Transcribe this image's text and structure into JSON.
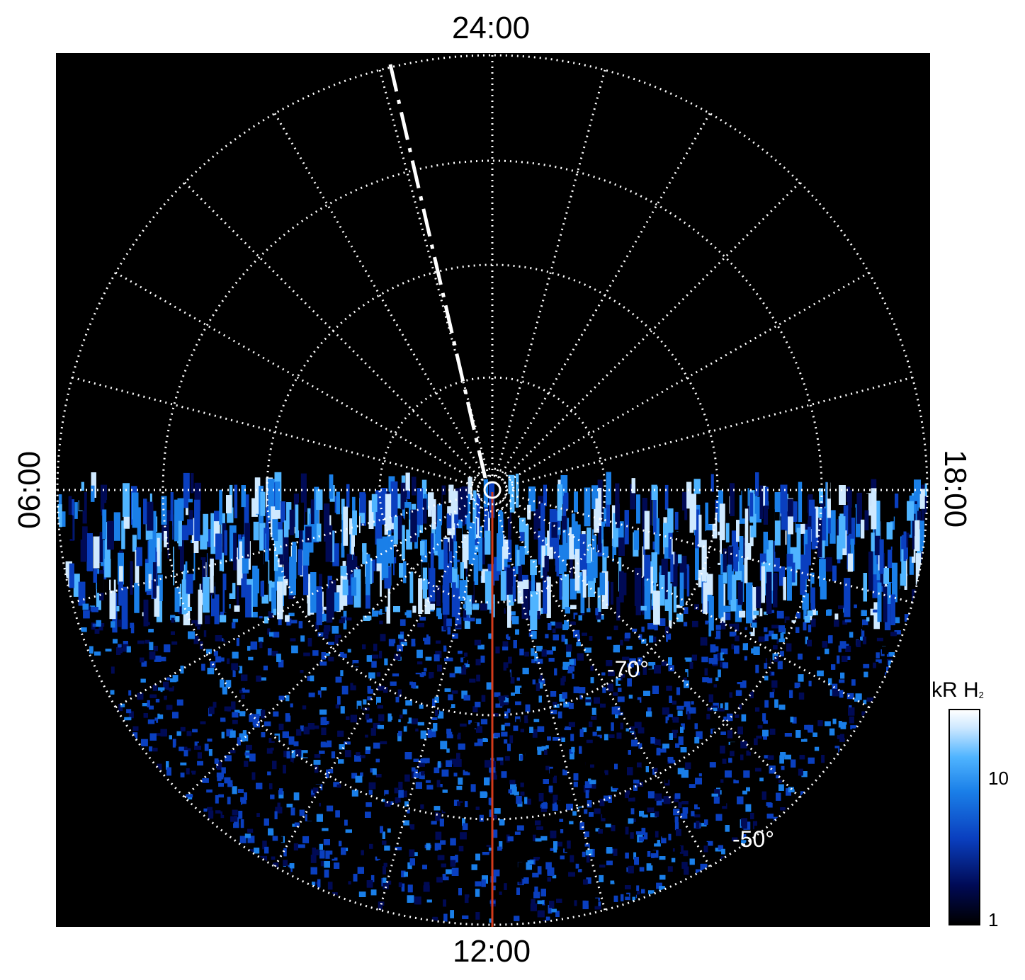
{
  "chart_data": {
    "type": "heatmap",
    "projection": "polar, south pole view",
    "local_time_labels": {
      "top": "24:00",
      "bottom": "12:00",
      "left": "06:00",
      "right": "18:00"
    },
    "latitude_labels": [
      "-70°",
      "-50°"
    ],
    "colorbar": {
      "title": "kR H",
      "title_subscript": "2",
      "scale": "log",
      "range": [
        1,
        25
      ],
      "tick_labels": [
        "10",
        "1"
      ],
      "colors": [
        "#000000",
        "#000a55",
        "#0a3fbf",
        "#1a7fe8",
        "#4fb4ff",
        "#cfe9ff",
        "#ffffff"
      ]
    },
    "grid": "dotted white lat/lon grid",
    "coverage": "emission data in dayside half only",
    "overlays": {
      "noon_meridian_color": "#d23a1a",
      "dashed_line_color": "#ffffff"
    }
  }
}
